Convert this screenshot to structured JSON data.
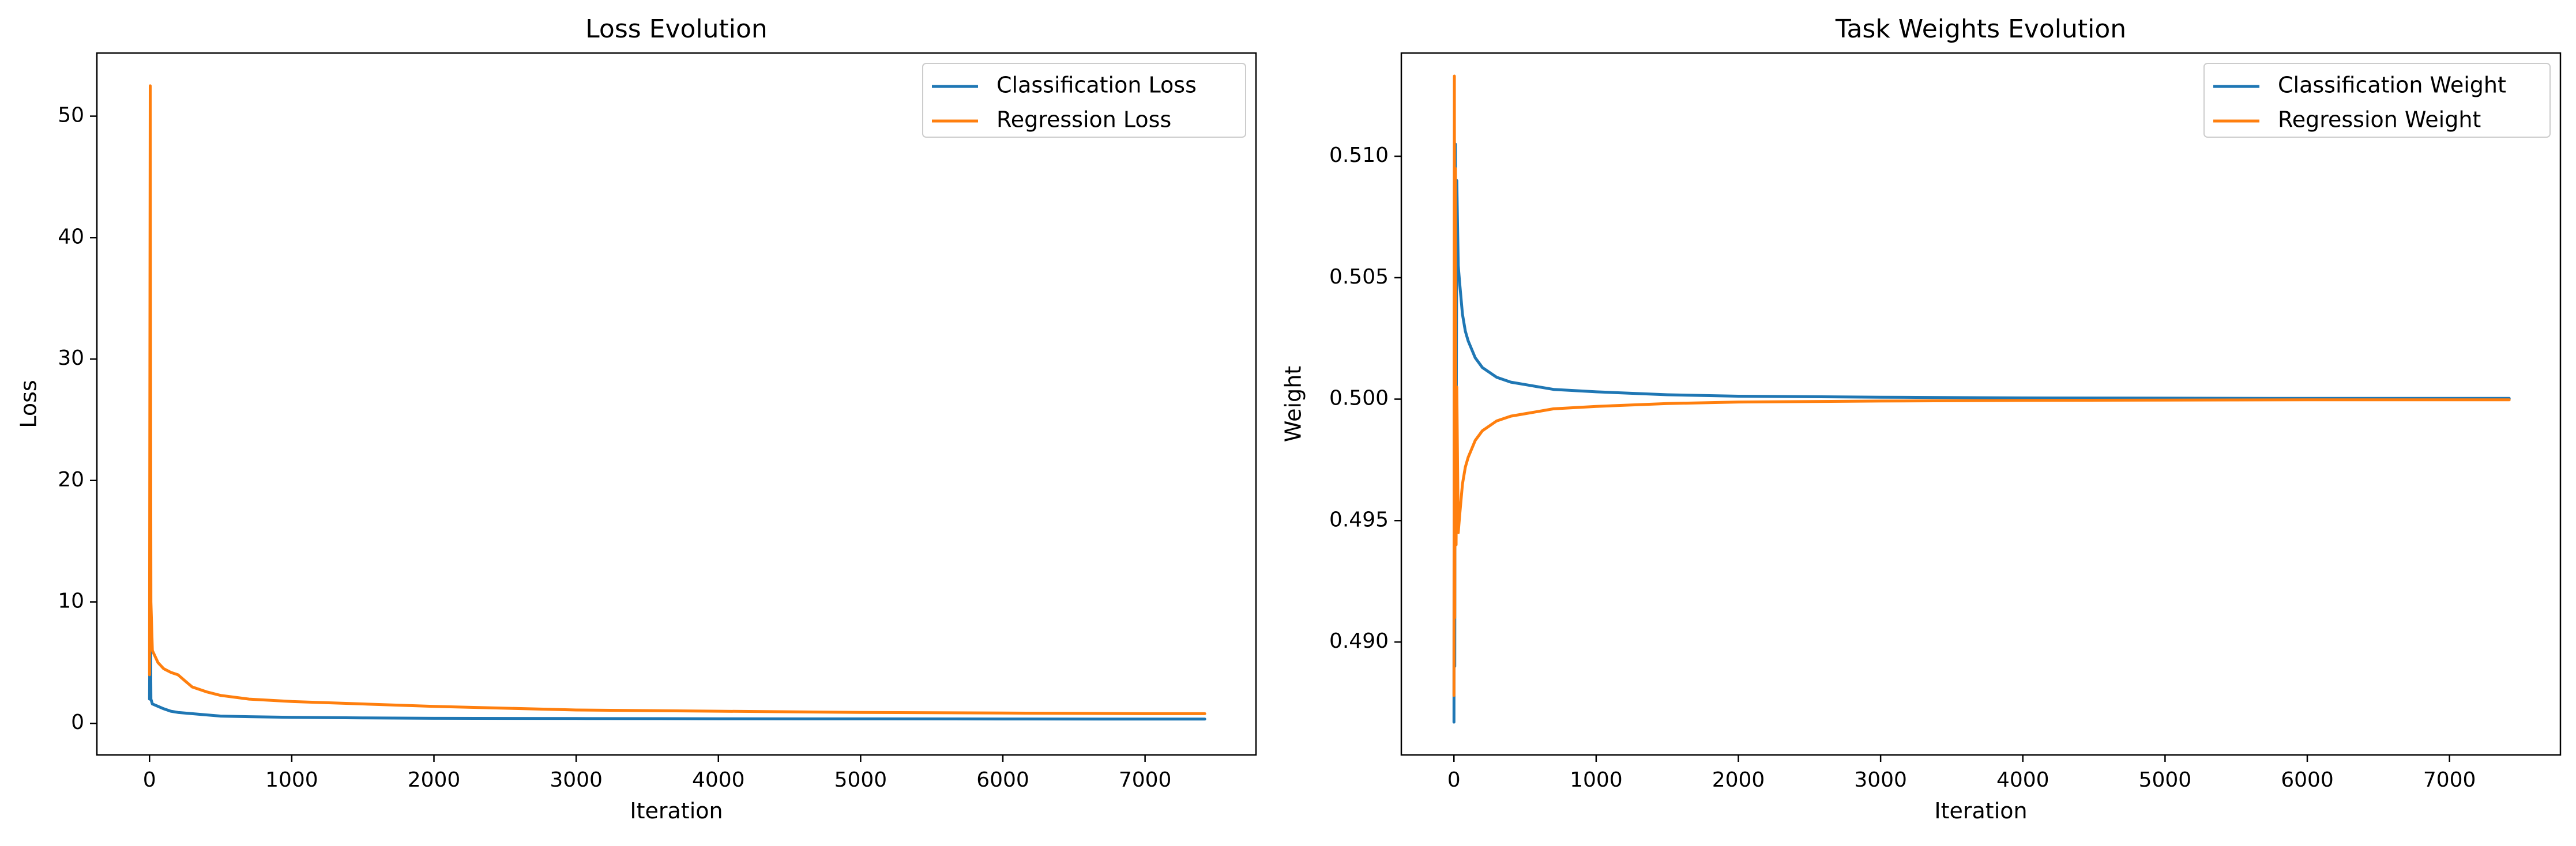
{
  "chart_data": [
    {
      "type": "line",
      "title": "Loss Evolution",
      "xlabel": "Iteration",
      "ylabel": "Loss",
      "xlim": [
        -370,
        7780
      ],
      "ylim": [
        -2.6,
        55.2
      ],
      "xticks": [
        0,
        1000,
        2000,
        3000,
        4000,
        5000,
        6000,
        7000
      ],
      "xtick_labels": [
        "0",
        "1000",
        "2000",
        "3000",
        "4000",
        "5000",
        "6000",
        "7000"
      ],
      "yticks": [
        0,
        10,
        20,
        30,
        40,
        50
      ],
      "ytick_labels": [
        "0",
        "10",
        "20",
        "30",
        "40",
        "50"
      ],
      "grid": false,
      "legend_position": "top-right",
      "series": [
        {
          "name": "Classification Loss",
          "color": "#1f77b4",
          "x": [
            0,
            5,
            10,
            20,
            40,
            60,
            100,
            150,
            200,
            300,
            400,
            500,
            700,
            1000,
            1500,
            2000,
            3000,
            4000,
            5000,
            6000,
            7000,
            7420
          ],
          "y": [
            2.0,
            11.0,
            2.0,
            1.6,
            1.5,
            1.4,
            1.2,
            1.0,
            0.9,
            0.8,
            0.7,
            0.6,
            0.55,
            0.5,
            0.45,
            0.42,
            0.4,
            0.38,
            0.37,
            0.36,
            0.35,
            0.35
          ]
        },
        {
          "name": "Regression Loss",
          "color": "#ff7f0e",
          "x": [
            0,
            5,
            10,
            20,
            40,
            60,
            100,
            150,
            200,
            250,
            300,
            400,
            500,
            700,
            1000,
            1500,
            2000,
            3000,
            4000,
            5000,
            6000,
            7000,
            7420
          ],
          "y": [
            4.0,
            52.5,
            10.0,
            6.0,
            5.5,
            5.0,
            4.5,
            4.2,
            4.0,
            3.5,
            3.0,
            2.6,
            2.3,
            2.0,
            1.8,
            1.6,
            1.4,
            1.1,
            1.0,
            0.9,
            0.85,
            0.8,
            0.8
          ]
        }
      ]
    },
    {
      "type": "line",
      "title": "Task Weights Evolution",
      "xlabel": "Iteration",
      "ylabel": "Weight",
      "xlim": [
        -370,
        7780
      ],
      "ylim": [
        0.48535,
        0.51425
      ],
      "xticks": [
        0,
        1000,
        2000,
        3000,
        4000,
        5000,
        6000,
        7000
      ],
      "xtick_labels": [
        "0",
        "1000",
        "2000",
        "3000",
        "4000",
        "5000",
        "6000",
        "7000"
      ],
      "yticks": [
        0.49,
        0.495,
        0.5,
        0.505,
        0.51
      ],
      "ytick_labels": [
        "0.490",
        "0.495",
        "0.500",
        "0.505",
        "0.510"
      ],
      "grid": false,
      "legend_position": "top-right",
      "series": [
        {
          "name": "Classification Weight",
          "color": "#1f77b4",
          "x": [
            0,
            3,
            6,
            10,
            15,
            20,
            30,
            40,
            60,
            80,
            100,
            150,
            200,
            300,
            400,
            500,
            700,
            1000,
            1500,
            2000,
            3000,
            4000,
            5000,
            6000,
            7000,
            7420
          ],
          "y": [
            0.4867,
            0.5115,
            0.489,
            0.5105,
            0.495,
            0.509,
            0.5055,
            0.5048,
            0.5035,
            0.5028,
            0.5024,
            0.5017,
            0.5013,
            0.5009,
            0.5007,
            0.5006,
            0.5004,
            0.5003,
            0.50018,
            0.50012,
            0.50008,
            0.50005,
            0.50004,
            0.50003,
            0.50003,
            0.50003
          ]
        },
        {
          "name": "Regression Weight",
          "color": "#ff7f0e",
          "x": [
            0,
            3,
            6,
            10,
            15,
            20,
            30,
            40,
            60,
            80,
            100,
            150,
            200,
            300,
            400,
            500,
            700,
            1000,
            1500,
            2000,
            3000,
            4000,
            5000,
            6000,
            7000,
            7420
          ],
          "y": [
            0.4878,
            0.5133,
            0.491,
            0.5095,
            0.494,
            0.5005,
            0.4945,
            0.4952,
            0.4965,
            0.4972,
            0.4976,
            0.4983,
            0.4987,
            0.4991,
            0.4993,
            0.4994,
            0.4996,
            0.4997,
            0.49982,
            0.49988,
            0.49992,
            0.49995,
            0.49996,
            0.49997,
            0.49997,
            0.49997
          ]
        }
      ]
    }
  ]
}
